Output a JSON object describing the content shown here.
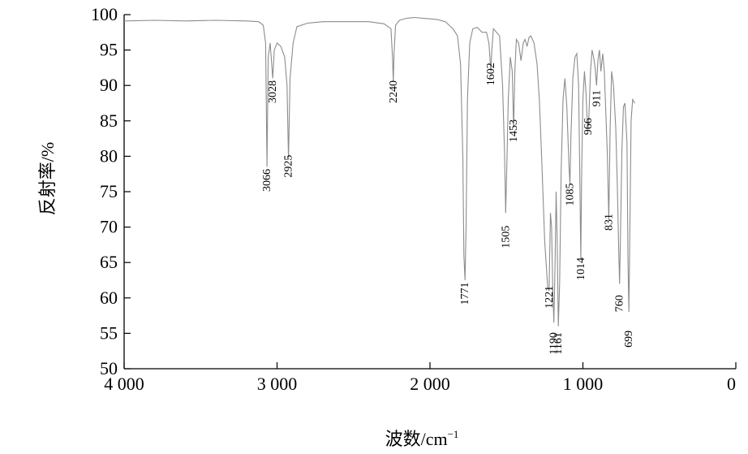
{
  "chart_data": {
    "type": "line",
    "title": "",
    "xlabel": "波数/cm",
    "xlabel_sup": "−1",
    "ylabel": "反射率/%",
    "xlim": [
      4000,
      0
    ],
    "ylim": [
      50,
      100
    ],
    "x_ticks": [
      4000,
      3000,
      2000,
      1000,
      0
    ],
    "x_tick_labels": [
      "4 000",
      "3 000",
      "2 000",
      "1 000",
      "0"
    ],
    "y_ticks": [
      50,
      55,
      60,
      65,
      70,
      75,
      80,
      85,
      90,
      95,
      100
    ],
    "y_tick_labels": [
      "50",
      "55",
      "60",
      "65",
      "70",
      "75",
      "80",
      "85",
      "90",
      "95",
      "100"
    ],
    "grid": false,
    "line_color": "#8c8c8c",
    "series": [
      {
        "x": [
          4000,
          3800,
          3600,
          3400,
          3200,
          3120,
          3090,
          3075,
          3066,
          3058,
          3045,
          3028,
          3018,
          3000,
          2975,
          2950,
          2935,
          2925,
          2915,
          2895,
          2870,
          2800,
          2700,
          2600,
          2500,
          2400,
          2300,
          2255,
          2245,
          2240,
          2235,
          2225,
          2200,
          2150,
          2100,
          2050,
          2000,
          1950,
          1900,
          1850,
          1820,
          1800,
          1785,
          1778,
          1771,
          1764,
          1755,
          1740,
          1720,
          1690,
          1660,
          1630,
          1615,
          1608,
          1602,
          1596,
          1585,
          1565,
          1545,
          1525,
          1512,
          1505,
          1498,
          1488,
          1475,
          1462,
          1453,
          1445,
          1435,
          1420,
          1405,
          1390,
          1378,
          1365,
          1352,
          1340,
          1320,
          1300,
          1285,
          1270,
          1250,
          1230,
          1221,
          1212,
          1205,
          1198,
          1190,
          1182,
          1175,
          1168,
          1161,
          1152,
          1142,
          1130,
          1118,
          1105,
          1092,
          1085,
          1078,
          1066,
          1052,
          1040,
          1028,
          1020,
          1014,
          1008,
          1000,
          990,
          980,
          972,
          966,
          960,
          950,
          940,
          930,
          920,
          911,
          902,
          892,
          882,
          870,
          860,
          850,
          840,
          831,
          822,
          812,
          800,
          785,
          775,
          765,
          760,
          755,
          745,
          735,
          725,
          712,
          705,
          699,
          693,
          685,
          675,
          660
        ],
        "y": [
          99.1,
          99.2,
          99.1,
          99.2,
          99.1,
          99.0,
          98.5,
          96.0,
          78.5,
          94.0,
          96.0,
          91.0,
          95.0,
          96.0,
          95.5,
          94.0,
          90.0,
          79.5,
          91.0,
          96.0,
          98.3,
          98.8,
          99.0,
          99.0,
          99.0,
          99.0,
          98.7,
          98.0,
          94.0,
          90.5,
          94.5,
          98.5,
          99.2,
          99.5,
          99.6,
          99.5,
          99.4,
          99.3,
          99.0,
          98.0,
          97.0,
          93.0,
          80.0,
          66.0,
          62.5,
          70.0,
          88.0,
          96.0,
          98.0,
          98.2,
          97.5,
          97.5,
          96.0,
          94.0,
          92.0,
          95.0,
          98.0,
          97.5,
          97.0,
          90.0,
          80.0,
          72.0,
          78.0,
          88.0,
          94.0,
          92.0,
          84.0,
          92.0,
          96.5,
          96.0,
          93.5,
          96.0,
          96.5,
          95.5,
          96.8,
          97.0,
          96.0,
          93.0,
          88.0,
          80.0,
          68.0,
          61.5,
          61.0,
          72.0,
          70.0,
          62.0,
          56.5,
          65.0,
          75.0,
          68.0,
          56.0,
          62.0,
          78.0,
          88.0,
          91.0,
          87.0,
          79.0,
          76.0,
          83.0,
          91.0,
          94.0,
          94.5,
          90.0,
          77.0,
          65.5,
          78.0,
          88.0,
          92.0,
          89.0,
          85.0,
          84.0,
          86.0,
          92.0,
          95.0,
          94.0,
          92.5,
          90.0,
          93.5,
          95.0,
          92.0,
          94.5,
          92.0,
          86.0,
          80.0,
          71.0,
          84.0,
          92.0,
          90.0,
          84.0,
          76.0,
          66.0,
          62.0,
          68.0,
          81.0,
          87.0,
          87.5,
          82.0,
          65.0,
          58.0,
          70.0,
          85.0,
          88.0,
          87.5
        ]
      }
    ],
    "peak_labels": [
      {
        "text": "3066",
        "x": 3066,
        "label_y": 75.0
      },
      {
        "text": "3028",
        "x": 3028,
        "label_y": 87.5
      },
      {
        "text": "2925",
        "x": 2925,
        "label_y": 77.0
      },
      {
        "text": "2240",
        "x": 2240,
        "label_y": 87.5
      },
      {
        "text": "1771",
        "x": 1771,
        "label_y": 59.0
      },
      {
        "text": "1602",
        "x": 1602,
        "label_y": 90.0
      },
      {
        "text": "1505",
        "x": 1505,
        "label_y": 67.0
      },
      {
        "text": "1453",
        "x": 1453,
        "label_y": 82.0
      },
      {
        "text": "1221",
        "x": 1221,
        "label_y": 58.5
      },
      {
        "text": "1190",
        "x": 1190,
        "label_y": 52.0
      },
      {
        "text": "1161",
        "x": 1161,
        "label_y": 52.0
      },
      {
        "text": "1085",
        "x": 1085,
        "label_y": 73.0
      },
      {
        "text": "1014",
        "x": 1014,
        "label_y": 62.5
      },
      {
        "text": "966",
        "x": 966,
        "label_y": 83.0
      },
      {
        "text": "911",
        "x": 911,
        "label_y": 87.0
      },
      {
        "text": "831",
        "x": 831,
        "label_y": 69.5
      },
      {
        "text": "760",
        "x": 760,
        "label_y": 58.0
      },
      {
        "text": "699",
        "x": 699,
        "label_y": 53.0
      }
    ]
  }
}
